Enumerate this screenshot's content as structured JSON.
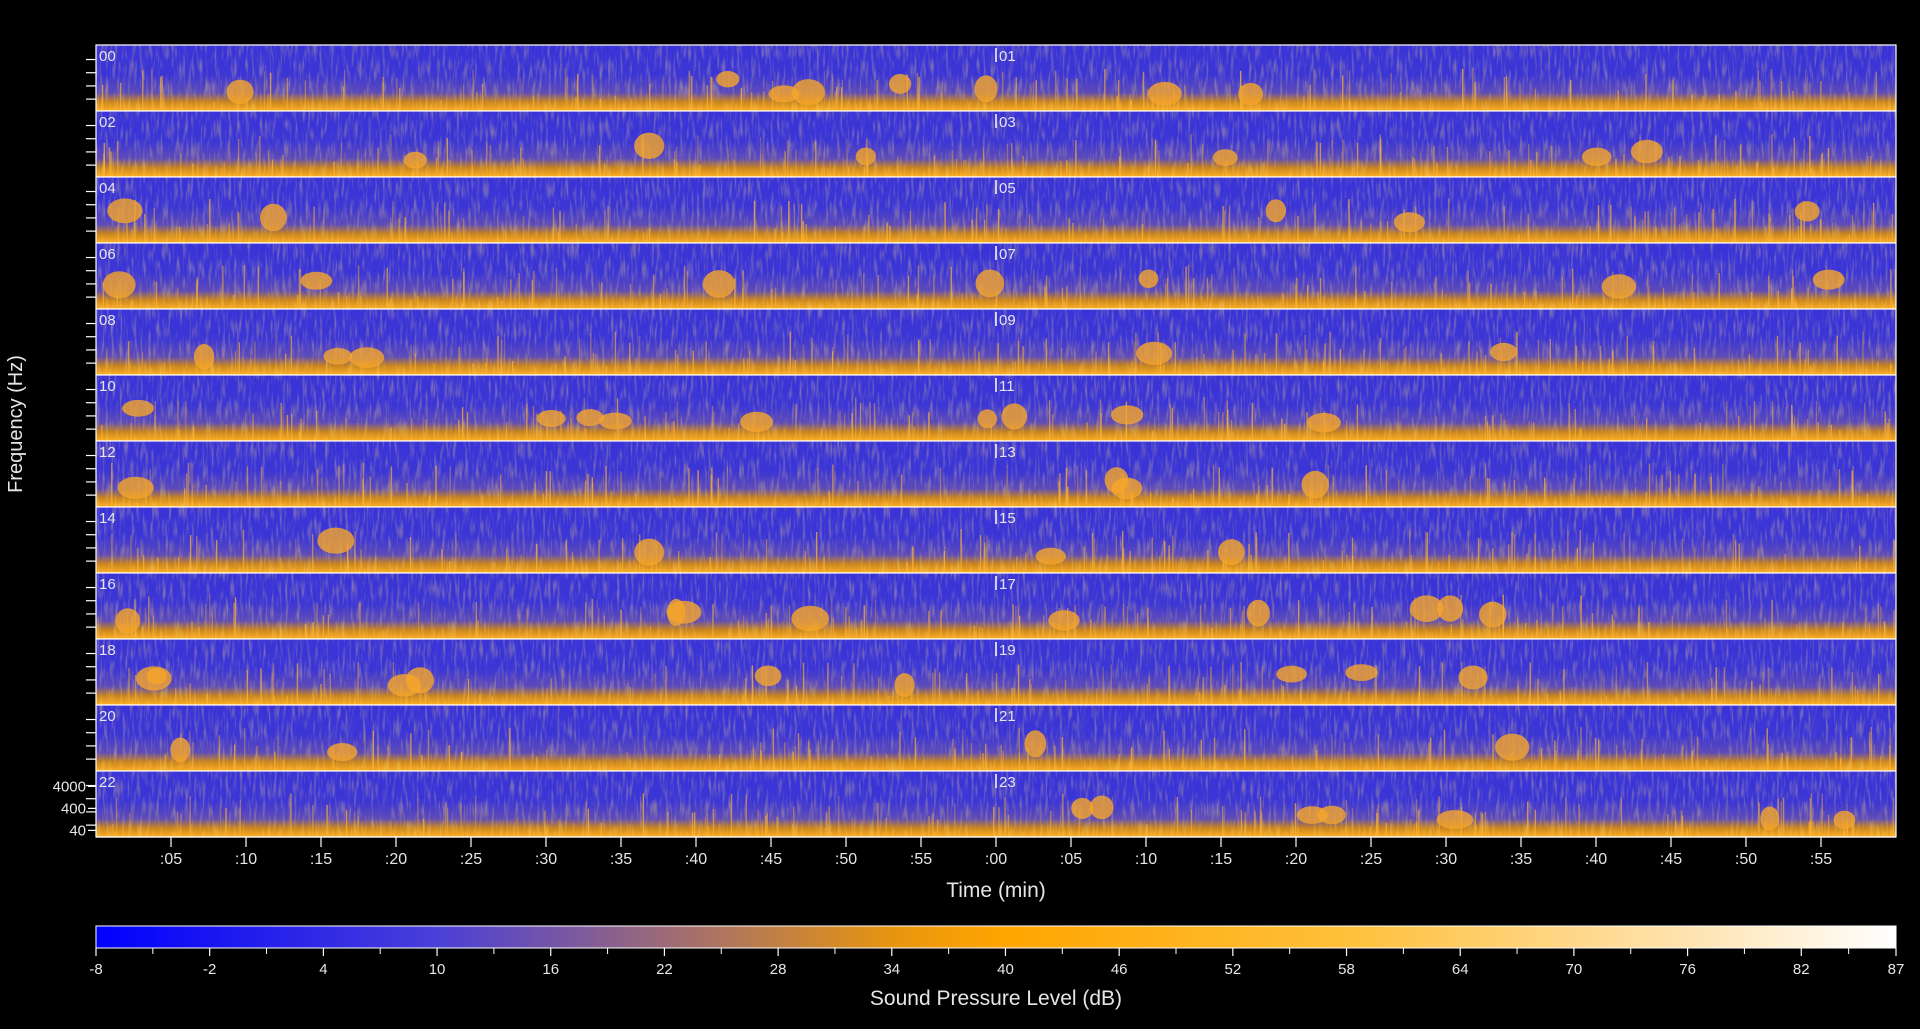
{
  "chart_data": {
    "type": "heatmap",
    "subtype": "24-hour spectrogram, two hours per row",
    "xlabel": "Time (min)",
    "ylabel": "Frequency (Hz)",
    "x_tick_labels": [
      ":05",
      ":10",
      ":15",
      ":20",
      ":25",
      ":30",
      ":35",
      ":40",
      ":45",
      ":50",
      ":55",
      ":00",
      ":05",
      ":10",
      ":15",
      ":20",
      ":25",
      ":30",
      ":35",
      ":40",
      ":45",
      ":50",
      ":55"
    ],
    "x_tick_minutes": [
      5,
      10,
      15,
      20,
      25,
      30,
      35,
      40,
      45,
      50,
      55,
      60,
      65,
      70,
      75,
      80,
      85,
      90,
      95,
      100,
      105,
      110,
      115
    ],
    "x_range_minutes": [
      0,
      120
    ],
    "y_tick_labels": [
      "4000",
      "400",
      "40"
    ],
    "y_tick_hz": [
      4000,
      400,
      40
    ],
    "y_range_hz": [
      20,
      20000
    ],
    "y_scale": "log",
    "hour_labels": [
      "00",
      "01",
      "02",
      "03",
      "04",
      "05",
      "06",
      "07",
      "08",
      "09",
      "10",
      "11",
      "12",
      "13",
      "14",
      "15",
      "16",
      "17",
      "18",
      "19",
      "20",
      "21",
      "22",
      "23"
    ],
    "colorbar": {
      "label": "Sound Pressure Level (dB)",
      "tick_labels": [
        "-8",
        "-2",
        "4",
        "10",
        "16",
        "22",
        "28",
        "34",
        "40",
        "46",
        "52",
        "58",
        "64",
        "70",
        "76",
        "82",
        "87"
      ],
      "tick_values": [
        -8,
        -2,
        4,
        10,
        16,
        22,
        28,
        34,
        40,
        46,
        52,
        58,
        64,
        70,
        76,
        82,
        87
      ],
      "range": [
        -8,
        87
      ],
      "colormap": [
        {
          "value": -8,
          "color": "#0000ff"
        },
        {
          "value": 10,
          "color": "#4a3fd8"
        },
        {
          "value": 22,
          "color": "#9c6a78"
        },
        {
          "value": 34,
          "color": "#e7950f"
        },
        {
          "value": 40,
          "color": "#ffa500"
        },
        {
          "value": 58,
          "color": "#ffc03a"
        },
        {
          "value": 76,
          "color": "#ffe3b0"
        },
        {
          "value": 87,
          "color": "#ffffff"
        }
      ]
    },
    "grid": false,
    "legend_placement": "bottom"
  },
  "colors": {
    "background": "#000000",
    "frame": "#ffffff",
    "text": "#e6e6e6",
    "quiet": "#3333dd",
    "loud": "#ffa500"
  }
}
